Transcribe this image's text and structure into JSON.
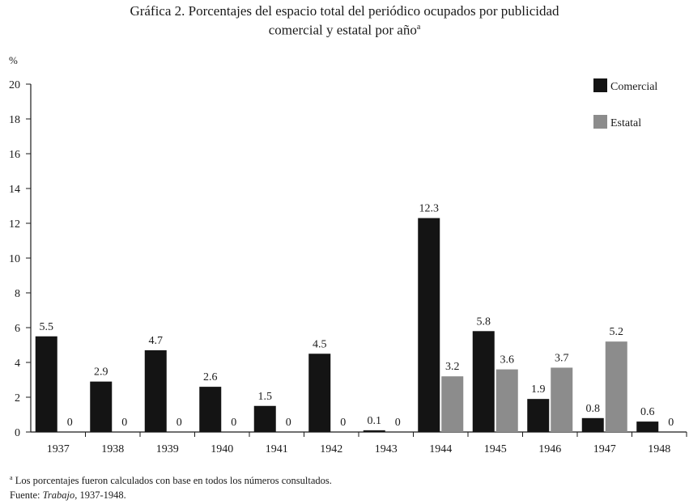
{
  "chart_data": {
    "type": "bar",
    "title_line1": "Gráfica 2. Porcentajes del espacio total del periódico ocupados por publicidad",
    "title_line2": "comercial y estatal por año",
    "title_marker": "a",
    "ylabel": "%",
    "ylim": [
      0,
      20
    ],
    "yticks": [
      "0",
      "2",
      "4",
      "6",
      "8",
      "10",
      "12",
      "14",
      "16",
      "18",
      "20"
    ],
    "categories": [
      "1937",
      "1938",
      "1939",
      "1940",
      "1941",
      "1942",
      "1943",
      "1944",
      "1945",
      "1946",
      "1947",
      "1948"
    ],
    "series": [
      {
        "name": "Comercial",
        "color": "#141414",
        "values": [
          5.5,
          2.9,
          4.7,
          2.6,
          1.5,
          4.5,
          0.1,
          12.3,
          5.8,
          1.9,
          0.8,
          0.6
        ],
        "labels": [
          "5.5",
          "2.9",
          "4.7",
          "2.6",
          "1.5",
          "4.5",
          "0.1",
          "12.3",
          "5.8",
          "1.9",
          "0.8",
          "0.6"
        ]
      },
      {
        "name": "Estatal",
        "color": "#8c8c8c",
        "values": [
          0,
          0,
          0,
          0,
          0,
          0,
          0,
          3.2,
          3.6,
          3.7,
          5.2,
          0
        ],
        "labels": [
          "0",
          "0",
          "0",
          "0",
          "0",
          "0",
          "0",
          "3.2",
          "3.6",
          "3.7",
          "5.2",
          "0"
        ]
      }
    ],
    "legend_position": "top-right",
    "grid": false
  },
  "footnote": {
    "marker": "a",
    "text": " Los porcentajes fueron calculados con base en todos los números consultados.",
    "source_prefix": "Fuente: ",
    "source_title": "Trabajo",
    "source_suffix": ", 1937-1948."
  }
}
